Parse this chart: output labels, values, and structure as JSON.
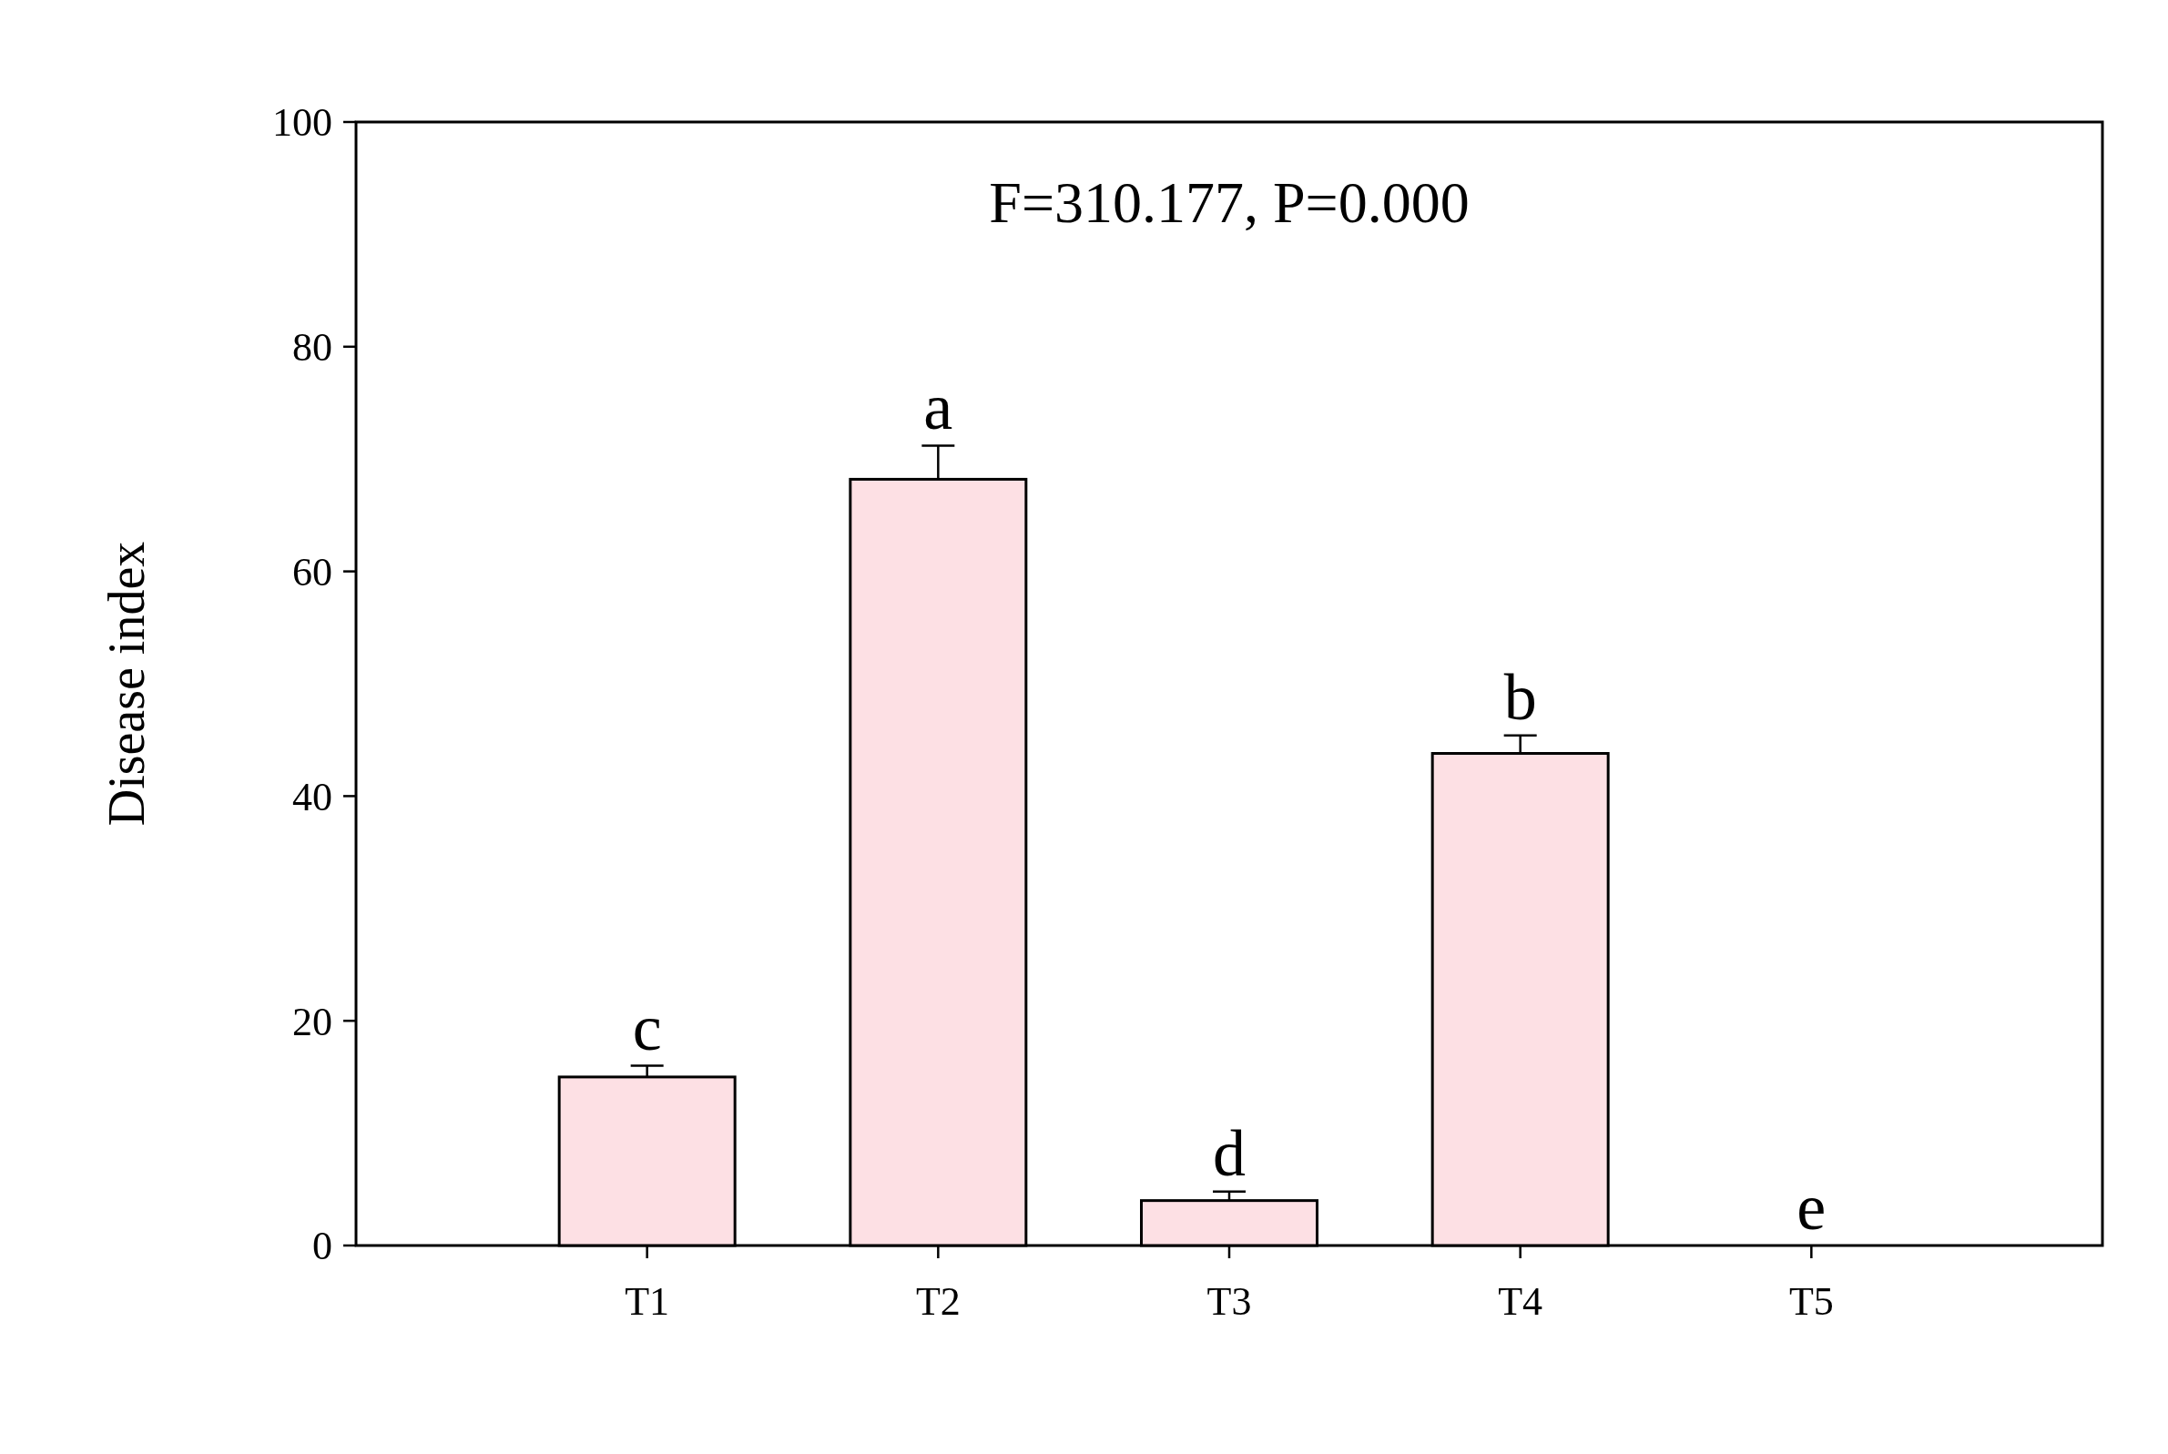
{
  "chart_data": {
    "type": "bar",
    "ylabel": "Disease index",
    "categories": [
      "T1",
      "T2",
      "T3",
      "T4",
      "T5"
    ],
    "values": [
      15.0,
      68.2,
      4.0,
      43.8,
      0
    ],
    "errors": [
      1.0,
      3.0,
      0.8,
      1.6,
      null
    ],
    "color": "#fde0e4",
    "ylim": [
      0,
      100
    ],
    "yticks": [
      0,
      20,
      40,
      60,
      80,
      100
    ],
    "annotations": [
      "F=310.177, P=0.000",
      {
        "text": "c",
        "x": "T1",
        "y": 16
      },
      {
        "text": "a",
        "x": "T2",
        "y": 71.2
      },
      {
        "text": "d",
        "x": "T3",
        "y": 4.8
      },
      {
        "text": "b",
        "x": "T4",
        "y": 45.4
      },
      {
        "text": "e",
        "x": "T5",
        "y": 0
      }
    ]
  }
}
